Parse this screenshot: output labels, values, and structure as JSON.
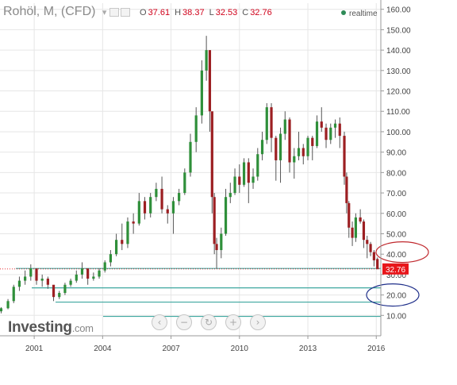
{
  "header": {
    "title": "Rohöl, M, (CFD)",
    "dropdown_glyph": "▾",
    "ohlc": [
      {
        "key": "O",
        "value": "37.61"
      },
      {
        "key": "H",
        "value": "38.37"
      },
      {
        "key": "L",
        "value": "32.53"
      },
      {
        "key": "C",
        "value": "32.76"
      }
    ],
    "realtime_label": "realtime"
  },
  "logo": {
    "brand": "Investing",
    "suffix": ".com"
  },
  "nav_controls": [
    {
      "name": "scroll-left-button",
      "glyph": "‹"
    },
    {
      "name": "zoom-out-button",
      "glyph": "−"
    },
    {
      "name": "reset-button",
      "glyph": "↻"
    },
    {
      "name": "zoom-in-button",
      "glyph": "+"
    },
    {
      "name": "scroll-right-button",
      "glyph": "›"
    }
  ],
  "colors": {
    "up": "#2f8f3a",
    "down": "#9c1f22",
    "price_tag_bg": "#e8161b",
    "hline": "#3fa7a0",
    "ellipse_red": "#c0282d",
    "ellipse_blue": "#1f2f8a",
    "grid": "#e6e6e6"
  },
  "chart_data": {
    "type": "candlestick",
    "title": "Rohöl, M, (CFD)",
    "ylim": [
      0,
      163
    ],
    "xlim": [
      1999.5,
      2016.2
    ],
    "y_ticks": [
      "10.00",
      "20.00",
      "30.00",
      "40.00",
      "50.00",
      "60.00",
      "70.00",
      "80.00",
      "90.00",
      "100.00",
      "110.00",
      "120.00",
      "130.00",
      "140.00",
      "150.00",
      "160.00"
    ],
    "x_ticks": [
      "2001",
      "2004",
      "2007",
      "2010",
      "2013",
      "2016"
    ],
    "current_price": "32.76",
    "horizontal_lines": [
      33.0,
      23.5,
      16.5,
      9.5
    ],
    "series": [
      {
        "name": "",
        "values": [
          [
            1999.55,
            12,
            14,
            11,
            13.5
          ],
          [
            1999.85,
            13.5,
            18,
            13,
            17
          ],
          [
            2000.1,
            17,
            25,
            16,
            24
          ],
          [
            2000.35,
            24,
            29,
            22,
            27
          ],
          [
            2000.6,
            27,
            32,
            25,
            29
          ],
          [
            2000.85,
            29,
            35,
            27,
            33
          ],
          [
            2001.1,
            33,
            31,
            25,
            27
          ],
          [
            2001.35,
            27,
            30,
            24,
            28
          ],
          [
            2001.6,
            28,
            29,
            23,
            25
          ],
          [
            2001.85,
            25,
            24,
            17,
            19
          ],
          [
            2002.1,
            19,
            22,
            18,
            21
          ],
          [
            2002.35,
            21,
            26,
            20,
            25
          ],
          [
            2002.6,
            25,
            28,
            24,
            27
          ],
          [
            2002.85,
            27,
            32,
            26,
            30
          ],
          [
            2003.1,
            30,
            36,
            28,
            33
          ],
          [
            2003.35,
            33,
            30,
            25,
            28
          ],
          [
            2003.6,
            28,
            31,
            27,
            29
          ],
          [
            2003.85,
            29,
            33,
            28,
            32
          ],
          [
            2004.1,
            32,
            37,
            31,
            36
          ],
          [
            2004.35,
            36,
            42,
            34,
            40
          ],
          [
            2004.6,
            40,
            50,
            39,
            47
          ],
          [
            2004.85,
            47,
            55,
            42,
            45
          ],
          [
            2005.1,
            45,
            58,
            43,
            56
          ],
          [
            2005.35,
            56,
            60,
            50,
            55
          ],
          [
            2005.6,
            55,
            70,
            54,
            66
          ],
          [
            2005.85,
            66,
            68,
            57,
            60
          ],
          [
            2006.1,
            60,
            70,
            58,
            68
          ],
          [
            2006.35,
            68,
            75,
            66,
            72
          ],
          [
            2006.6,
            72,
            78,
            60,
            62
          ],
          [
            2006.85,
            62,
            64,
            55,
            60
          ],
          [
            2007.1,
            60,
            68,
            50,
            66
          ],
          [
            2007.35,
            66,
            72,
            64,
            70
          ],
          [
            2007.6,
            70,
            82,
            69,
            80
          ],
          [
            2007.85,
            80,
            99,
            78,
            95
          ],
          [
            2008.1,
            95,
            112,
            90,
            108
          ],
          [
            2008.35,
            108,
            135,
            104,
            130
          ],
          [
            2008.55,
            130,
            147,
            125,
            140
          ],
          [
            2008.7,
            140,
            128,
            100,
            110
          ],
          [
            2008.8,
            110,
            100,
            60,
            68
          ],
          [
            2008.9,
            68,
            70,
            40,
            45
          ],
          [
            2009.0,
            45,
            48,
            33,
            42
          ],
          [
            2009.2,
            42,
            53,
            38,
            50
          ],
          [
            2009.4,
            50,
            72,
            49,
            68
          ],
          [
            2009.6,
            68,
            75,
            65,
            70
          ],
          [
            2009.8,
            70,
            82,
            69,
            78
          ],
          [
            2010.0,
            78,
            84,
            70,
            74
          ],
          [
            2010.2,
            74,
            87,
            73,
            85
          ],
          [
            2010.4,
            85,
            87,
            65,
            75
          ],
          [
            2010.6,
            75,
            82,
            72,
            78
          ],
          [
            2010.8,
            78,
            92,
            76,
            89
          ],
          [
            2011.0,
            89,
            100,
            86,
            96
          ],
          [
            2011.2,
            96,
            114,
            94,
            112
          ],
          [
            2011.4,
            112,
            114,
            90,
            97
          ],
          [
            2011.6,
            97,
            98,
            76,
            86
          ],
          [
            2011.8,
            86,
            102,
            75,
            99
          ],
          [
            2012.0,
            99,
            110,
            96,
            106
          ],
          [
            2012.2,
            106,
            107,
            80,
            85
          ],
          [
            2012.4,
            85,
            92,
            77,
            88
          ],
          [
            2012.6,
            88,
            100,
            86,
            92
          ],
          [
            2012.8,
            92,
            94,
            84,
            88
          ],
          [
            2013.0,
            88,
            98,
            86,
            97
          ],
          [
            2013.2,
            97,
            98,
            86,
            93
          ],
          [
            2013.4,
            93,
            108,
            92,
            105
          ],
          [
            2013.6,
            105,
            112,
            100,
            102
          ],
          [
            2013.8,
            102,
            104,
            92,
            96
          ],
          [
            2014.0,
            96,
            104,
            94,
            102
          ],
          [
            2014.2,
            102,
            106,
            97,
            104
          ],
          [
            2014.4,
            104,
            107,
            92,
            98
          ],
          [
            2014.6,
            98,
            100,
            74,
            78
          ],
          [
            2014.7,
            78,
            80,
            60,
            65
          ],
          [
            2014.8,
            65,
            66,
            48,
            53
          ],
          [
            2014.95,
            53,
            56,
            44,
            48
          ],
          [
            2015.1,
            48,
            60,
            46,
            58
          ],
          [
            2015.3,
            58,
            62,
            55,
            56
          ],
          [
            2015.45,
            56,
            57,
            43,
            47
          ],
          [
            2015.6,
            47,
            49,
            38,
            45
          ],
          [
            2015.75,
            45,
            46,
            39,
            41
          ],
          [
            2015.9,
            41,
            42,
            34,
            37
          ],
          [
            2016.05,
            37.61,
            38.37,
            32.53,
            32.76
          ]
        ]
      }
    ],
    "annotations": [
      {
        "shape": "ellipse",
        "color": "red",
        "center_price": 41
      },
      {
        "shape": "ellipse",
        "color": "blue",
        "center_price": 20
      }
    ]
  }
}
